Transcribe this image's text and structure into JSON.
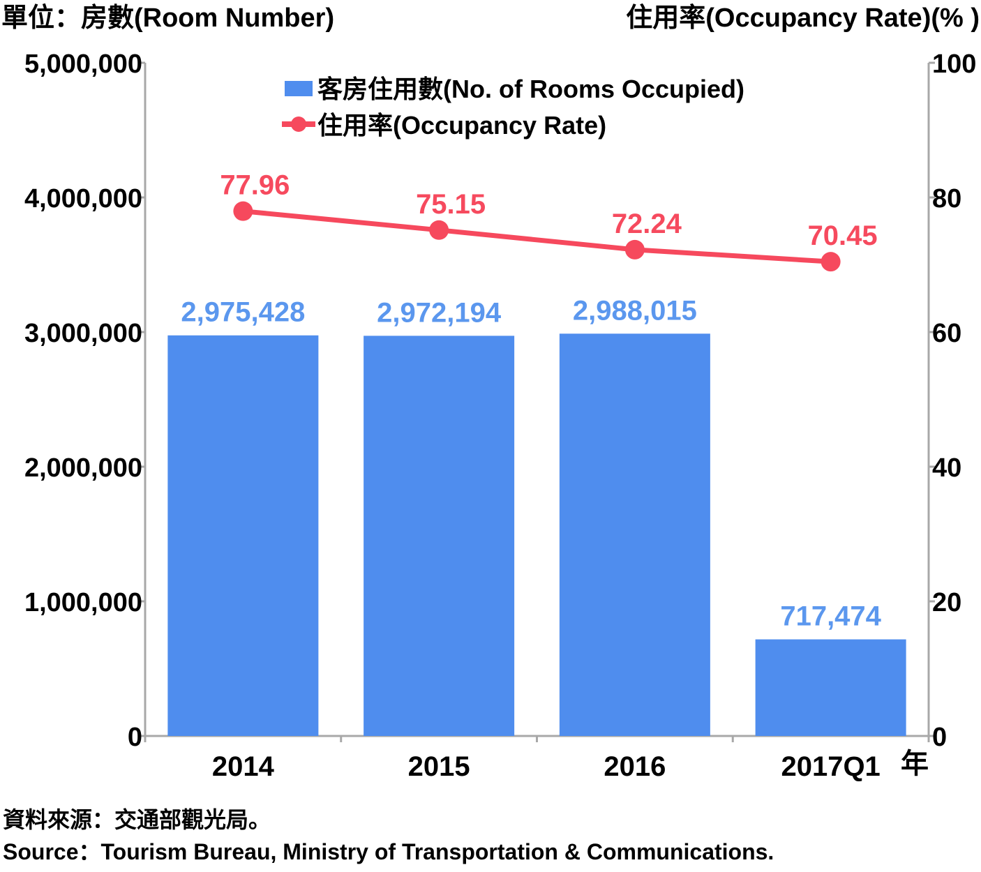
{
  "chart_data": {
    "type": "bar",
    "left_unit_label": "單位：房數(Room Number)",
    "right_unit_label": "住用率(Occupancy Rate)(% )",
    "categories": [
      "2014",
      "2015",
      "2016",
      "2017Q1"
    ],
    "x_suffix": "年",
    "ylim_left": [
      0,
      5000000
    ],
    "ylim_right": [
      0,
      100
    ],
    "left_ticks": [
      "0",
      "1,000,000",
      "2,000,000",
      "3,000,000",
      "4,000,000",
      "5,000,000"
    ],
    "right_ticks": [
      "0",
      "20",
      "40",
      "60",
      "80",
      "100"
    ],
    "series": [
      {
        "name": "客房住用數(No. of Rooms Occupied)",
        "type": "bar",
        "axis": "left",
        "color": "#4f8dee",
        "label_color": "#5b97ee",
        "values": [
          2975428,
          2972194,
          2988015,
          717474
        ],
        "labels": [
          "2,975,428",
          "2,972,194",
          "2,988,015",
          "717,474"
        ]
      },
      {
        "name": "住用率(Occupancy Rate)",
        "type": "line",
        "axis": "right",
        "color": "#f6495d",
        "label_color": "#f64a5e",
        "values": [
          77.96,
          75.15,
          72.24,
          70.45
        ],
        "labels": [
          "77.96",
          "75.15",
          "72.24",
          "70.45"
        ]
      }
    ],
    "legend_position": "top-center",
    "grid": false
  },
  "source": {
    "zh": "資料來源：交通部觀光局。",
    "en": "Source：Tourism Bureau, Ministry of Transportation & Communications."
  }
}
